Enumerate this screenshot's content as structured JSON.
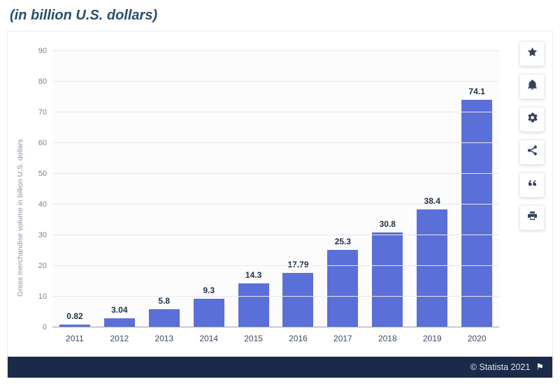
{
  "header": {
    "title": "(in billion U.S. dollars)"
  },
  "chart_data": {
    "type": "bar",
    "title": "(in billion U.S. dollars)",
    "categories": [
      "2011",
      "2012",
      "2013",
      "2014",
      "2015",
      "2016",
      "2017",
      "2018",
      "2019",
      "2020"
    ],
    "values": [
      0.82,
      3.04,
      5.8,
      9.3,
      14.3,
      17.79,
      25.3,
      30.8,
      38.4,
      74.1
    ],
    "value_labels": [
      "0.82",
      "3.04",
      "5.8",
      "9.3",
      "14.3",
      "17.79",
      "25.3",
      "30.8",
      "38.4",
      "74.1"
    ],
    "xlabel": "",
    "ylabel": "Gross merchandise volume in billion U.S. dollars",
    "ylim": [
      0,
      90
    ],
    "yticks": [
      0,
      10,
      20,
      30,
      40,
      50,
      60,
      70,
      80,
      90
    ],
    "bar_color": "#5b6fd8",
    "grid": true,
    "legend": false
  },
  "toolbar": {
    "icons": [
      "star-icon",
      "bell-icon",
      "gear-icon",
      "share-icon",
      "quote-icon",
      "print-icon"
    ]
  },
  "footer": {
    "copyright": "© Statista 2021",
    "flag_icon": "⚑"
  }
}
